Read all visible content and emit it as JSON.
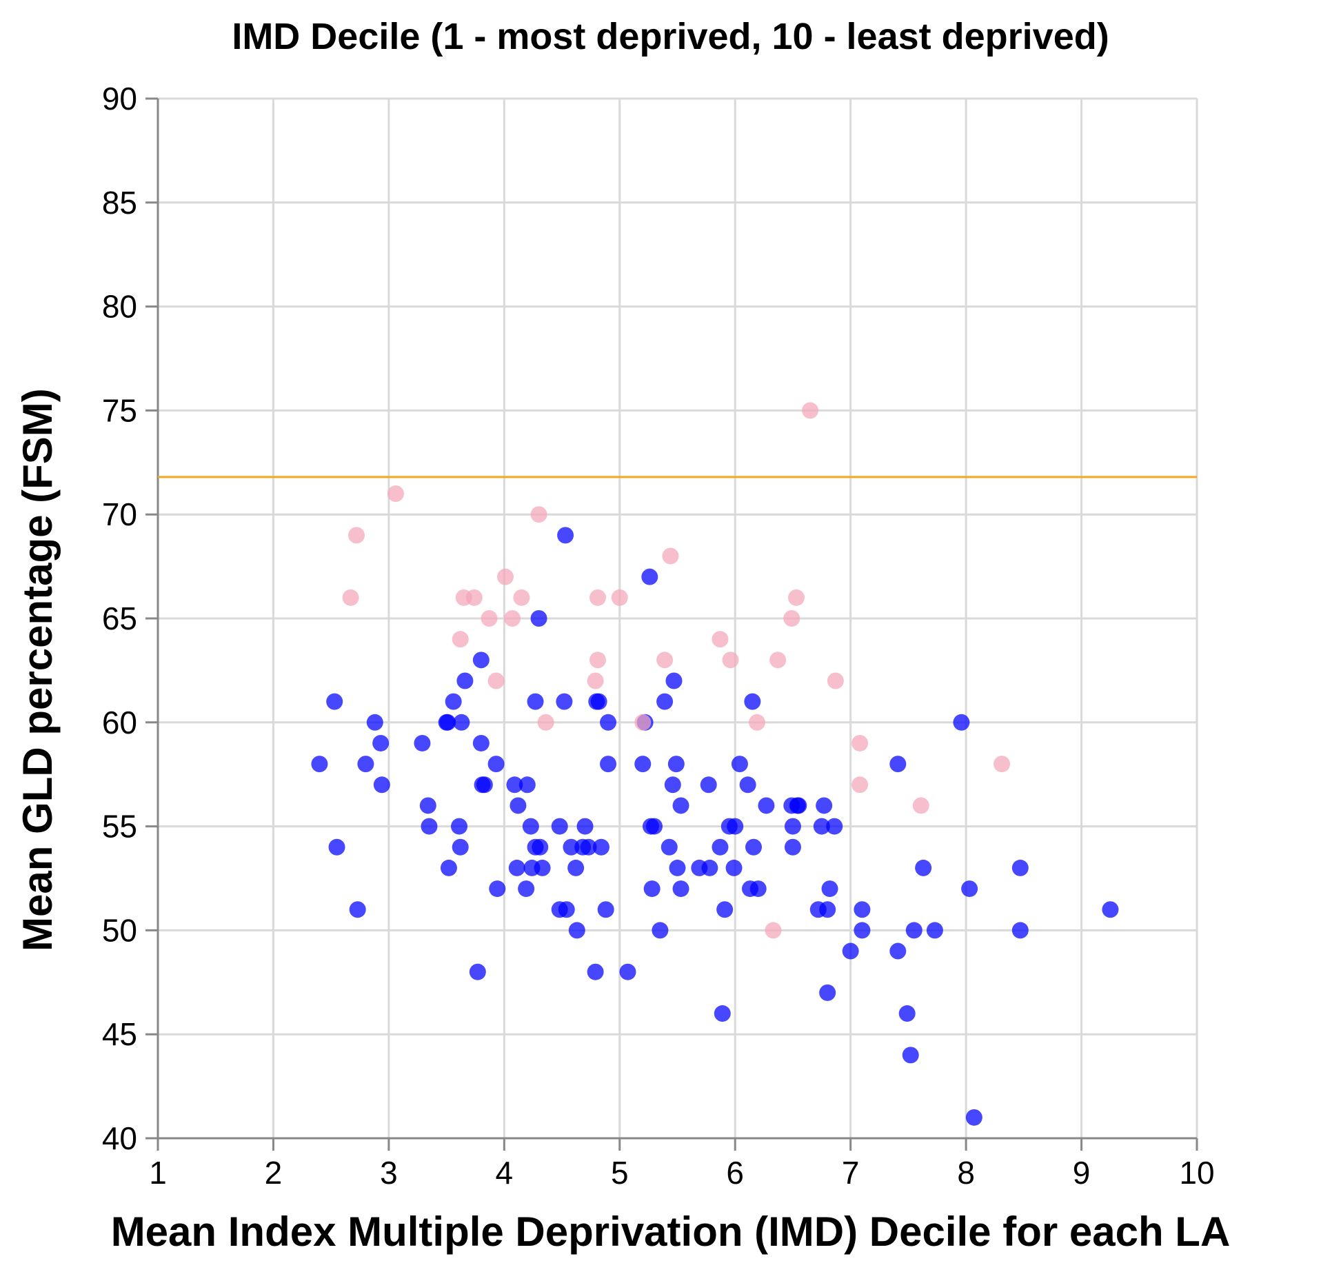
{
  "chart_data": {
    "type": "scatter",
    "title": "IMD Decile  (1 - most deprived, 10 - least deprived)",
    "xlabel": "Mean Index Multiple Deprivation (IMD) Decile for each LA",
    "ylabel": "Mean GLD percentage (FSM)",
    "xlim": [
      1,
      10
    ],
    "ylim": [
      40,
      90
    ],
    "xticks": [
      1,
      2,
      3,
      4,
      5,
      6,
      7,
      8,
      9,
      10
    ],
    "yticks": [
      40,
      45,
      50,
      55,
      60,
      65,
      70,
      75,
      80,
      85,
      90
    ],
    "grid": true,
    "reference_line": {
      "y": 71.8,
      "color": "#f5a623"
    },
    "colors": {
      "below": "#0000ff",
      "above": "#f4a6b8"
    },
    "series": [
      {
        "color": "#0000ff",
        "points": [
          [
            2.4,
            58
          ],
          [
            2.53,
            61
          ],
          [
            2.55,
            54
          ],
          [
            2.73,
            51
          ],
          [
            2.8,
            58
          ],
          [
            2.88,
            60
          ],
          [
            2.93,
            59
          ],
          [
            2.94,
            57
          ],
          [
            3.29,
            59
          ],
          [
            3.34,
            56
          ],
          [
            3.35,
            55
          ],
          [
            3.5,
            60
          ],
          [
            3.51,
            60
          ],
          [
            3.52,
            53
          ],
          [
            3.56,
            61
          ],
          [
            3.61,
            55
          ],
          [
            3.62,
            54
          ],
          [
            3.63,
            60
          ],
          [
            3.66,
            62
          ],
          [
            3.77,
            48
          ],
          [
            3.8,
            63
          ],
          [
            3.8,
            59
          ],
          [
            3.81,
            57
          ],
          [
            3.83,
            57
          ],
          [
            3.93,
            58
          ],
          [
            3.94,
            52
          ],
          [
            4.09,
            57
          ],
          [
            4.11,
            53
          ],
          [
            4.12,
            56
          ],
          [
            4.19,
            52
          ],
          [
            4.2,
            57
          ],
          [
            4.23,
            55
          ],
          [
            4.24,
            53
          ],
          [
            4.27,
            61
          ],
          [
            4.27,
            54
          ],
          [
            4.3,
            65
          ],
          [
            4.31,
            54
          ],
          [
            4.33,
            53
          ],
          [
            4.48,
            51
          ],
          [
            4.48,
            55
          ],
          [
            4.52,
            61
          ],
          [
            4.53,
            69
          ],
          [
            4.54,
            51
          ],
          [
            4.58,
            54
          ],
          [
            4.62,
            53
          ],
          [
            4.63,
            50
          ],
          [
            4.68,
            54
          ],
          [
            4.7,
            55
          ],
          [
            4.73,
            54
          ],
          [
            4.79,
            48
          ],
          [
            4.8,
            61
          ],
          [
            4.82,
            61
          ],
          [
            4.84,
            54
          ],
          [
            4.88,
            51
          ],
          [
            4.9,
            58
          ],
          [
            4.9,
            60
          ],
          [
            5.07,
            48
          ],
          [
            5.2,
            58
          ],
          [
            5.22,
            60
          ],
          [
            5.26,
            67
          ],
          [
            5.27,
            55
          ],
          [
            5.28,
            52
          ],
          [
            5.3,
            55
          ],
          [
            5.35,
            50
          ],
          [
            5.39,
            61
          ],
          [
            5.43,
            54
          ],
          [
            5.46,
            57
          ],
          [
            5.47,
            62
          ],
          [
            5.49,
            58
          ],
          [
            5.5,
            53
          ],
          [
            5.53,
            56
          ],
          [
            5.53,
            52
          ],
          [
            5.69,
            53
          ],
          [
            5.77,
            57
          ],
          [
            5.78,
            53
          ],
          [
            5.87,
            54
          ],
          [
            5.89,
            46
          ],
          [
            5.91,
            51
          ],
          [
            5.95,
            55
          ],
          [
            5.99,
            53
          ],
          [
            6.0,
            55
          ],
          [
            6.04,
            58
          ],
          [
            6.11,
            57
          ],
          [
            6.13,
            52
          ],
          [
            6.15,
            61
          ],
          [
            6.16,
            54
          ],
          [
            6.2,
            52
          ],
          [
            6.27,
            56
          ],
          [
            6.49,
            56
          ],
          [
            6.5,
            54
          ],
          [
            6.5,
            55
          ],
          [
            6.54,
            56
          ],
          [
            6.55,
            56
          ],
          [
            6.72,
            51
          ],
          [
            6.75,
            55
          ],
          [
            6.77,
            56
          ],
          [
            6.8,
            47
          ],
          [
            6.8,
            51
          ],
          [
            6.82,
            52
          ],
          [
            6.86,
            55
          ],
          [
            7.0,
            49
          ],
          [
            7.1,
            51
          ],
          [
            7.1,
            50
          ],
          [
            7.41,
            58
          ],
          [
            7.41,
            49
          ],
          [
            7.49,
            46
          ],
          [
            7.52,
            44
          ],
          [
            7.55,
            50
          ],
          [
            7.63,
            53
          ],
          [
            7.73,
            50
          ],
          [
            7.96,
            60
          ],
          [
            8.03,
            52
          ],
          [
            8.07,
            41
          ],
          [
            8.47,
            53
          ],
          [
            8.47,
            50
          ],
          [
            9.25,
            51
          ]
        ]
      },
      {
        "color": "#f4a6b8",
        "points": [
          [
            2.67,
            66
          ],
          [
            2.72,
            69
          ],
          [
            3.06,
            71
          ],
          [
            3.62,
            64
          ],
          [
            3.65,
            66
          ],
          [
            3.74,
            66
          ],
          [
            3.87,
            65
          ],
          [
            3.93,
            62
          ],
          [
            4.01,
            67
          ],
          [
            4.07,
            65
          ],
          [
            4.15,
            66
          ],
          [
            4.3,
            70
          ],
          [
            4.36,
            60
          ],
          [
            4.79,
            62
          ],
          [
            4.81,
            66
          ],
          [
            4.81,
            63
          ],
          [
            5.0,
            66
          ],
          [
            5.2,
            60
          ],
          [
            5.39,
            63
          ],
          [
            5.44,
            68
          ],
          [
            5.87,
            64
          ],
          [
            5.96,
            63
          ],
          [
            6.19,
            60
          ],
          [
            6.33,
            50
          ],
          [
            6.37,
            63
          ],
          [
            6.49,
            65
          ],
          [
            6.53,
            66
          ],
          [
            6.65,
            75
          ],
          [
            6.87,
            62
          ],
          [
            7.08,
            59
          ],
          [
            7.08,
            57
          ],
          [
            7.61,
            56
          ],
          [
            8.31,
            58
          ]
        ]
      }
    ]
  }
}
